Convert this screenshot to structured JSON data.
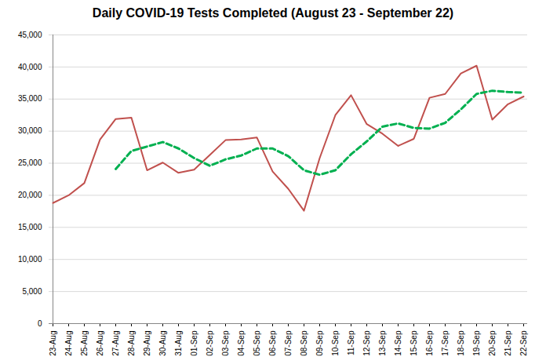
{
  "chart_data": {
    "type": "line",
    "title": "Daily COVID-19 Tests Completed (August 23 - September 22)",
    "categories": [
      "23-Aug",
      "24-Aug",
      "25-Aug",
      "26-Aug",
      "27-Aug",
      "28-Aug",
      "29-Aug",
      "30-Aug",
      "31-Aug",
      "01-Sep",
      "02-Sep",
      "03-Sep",
      "04-Sep",
      "05-Sep",
      "06-Sep",
      "07-Sep",
      "08-Sep",
      "09-Sep",
      "10-Sep",
      "11-Sep",
      "12-Sep",
      "13-Sep",
      "14-Sep",
      "15-Sep",
      "16-Sep",
      "17-Sep",
      "18-Sep",
      "19-Sep",
      "20-Sep",
      "21-Sep",
      "22-Sep"
    ],
    "series": [
      {
        "color": "#c0504d",
        "line_style": "solid",
        "values": [
          18800,
          20000,
          21900,
          28700,
          31900,
          32100,
          23900,
          25100,
          23500,
          24000,
          26300,
          28600,
          28700,
          29000,
          23700,
          21000,
          17600,
          25800,
          32500,
          35600,
          31100,
          29600,
          27700,
          28800,
          35200,
          35800,
          39000,
          40200,
          31800,
          34200,
          35400
        ]
      },
      {
        "color": "#00b050",
        "line_style": "dashed",
        "values": [
          null,
          null,
          null,
          null,
          24100,
          26900,
          27600,
          28300,
          27300,
          25800,
          24600,
          25600,
          26200,
          27300,
          27300,
          26100,
          23900,
          23200,
          23900,
          26400,
          28400,
          30700,
          31200,
          30500,
          30400,
          31300,
          33400,
          35800,
          36300,
          36100,
          36000
        ]
      }
    ],
    "ylim": [
      0,
      45000
    ],
    "yticks": [
      0,
      {
        "value": 5000,
        "label": "5,000"
      },
      {
        "value": 10000,
        "label": "10,000"
      },
      {
        "value": 15000,
        "label": "15,000"
      },
      {
        "value": 20000,
        "label": "20,000"
      },
      {
        "value": 25000,
        "label": "25,000"
      },
      {
        "value": 30000,
        "label": "30,000"
      },
      {
        "value": 35000,
        "label": "35,000"
      },
      {
        "value": 40000,
        "label": "40,000"
      },
      {
        "value": 45000,
        "label": "45,000"
      }
    ],
    "grid": true
  }
}
